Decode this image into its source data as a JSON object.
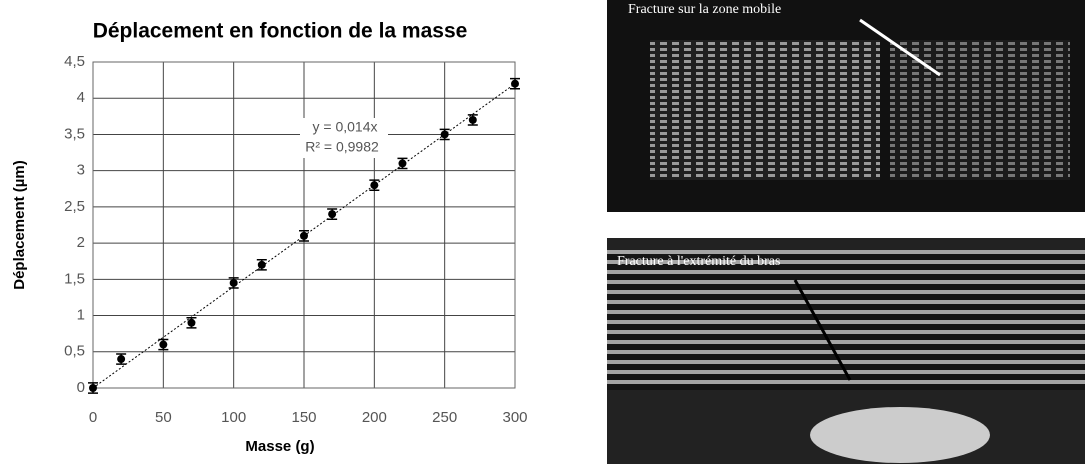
{
  "chart_data": {
    "type": "scatter",
    "title": "Déplacement en fonction de la masse",
    "x_label": "Masse (g)",
    "y_label": "Déplacement (µm)",
    "x": [
      0,
      20,
      50,
      70,
      100,
      120,
      150,
      170,
      200,
      220,
      250,
      270,
      300
    ],
    "series": [
      {
        "name": null,
        "color": "#000000",
        "values": [
          0,
          0.4,
          0.6,
          0.9,
          1.45,
          1.7,
          2.1,
          2.4,
          2.8,
          3.1,
          3.5,
          3.7,
          4.2
        ],
        "errors": [
          0.07,
          0.07,
          0.07,
          0.07,
          0.07,
          0.07,
          0.07,
          0.07,
          0.07,
          0.07,
          0.07,
          0.07,
          0.07
        ]
      }
    ],
    "trendline": {
      "slope": 0.014,
      "label": "y = 0,014x",
      "r2_label": "R² = 0,9982"
    },
    "xlim": [
      0,
      300
    ],
    "xticks": [
      0,
      50,
      100,
      150,
      200,
      250,
      300
    ],
    "ylim": [
      0,
      4.5
    ],
    "yticks": [
      0,
      {
        "value": 0.5,
        "label": "0,5"
      },
      1,
      {
        "value": 1.5,
        "label": "1,5"
      },
      2,
      {
        "value": 2.5,
        "label": "2,5"
      },
      3,
      {
        "value": 3.5,
        "label": "3,5"
      },
      4,
      {
        "value": 4.5,
        "label": "4,5"
      }
    ],
    "grid": true
  },
  "images": [
    {
      "caption": "Fracture sur la zone mobile"
    },
    {
      "caption": "Fracture à l'extrémité du bras"
    }
  ]
}
